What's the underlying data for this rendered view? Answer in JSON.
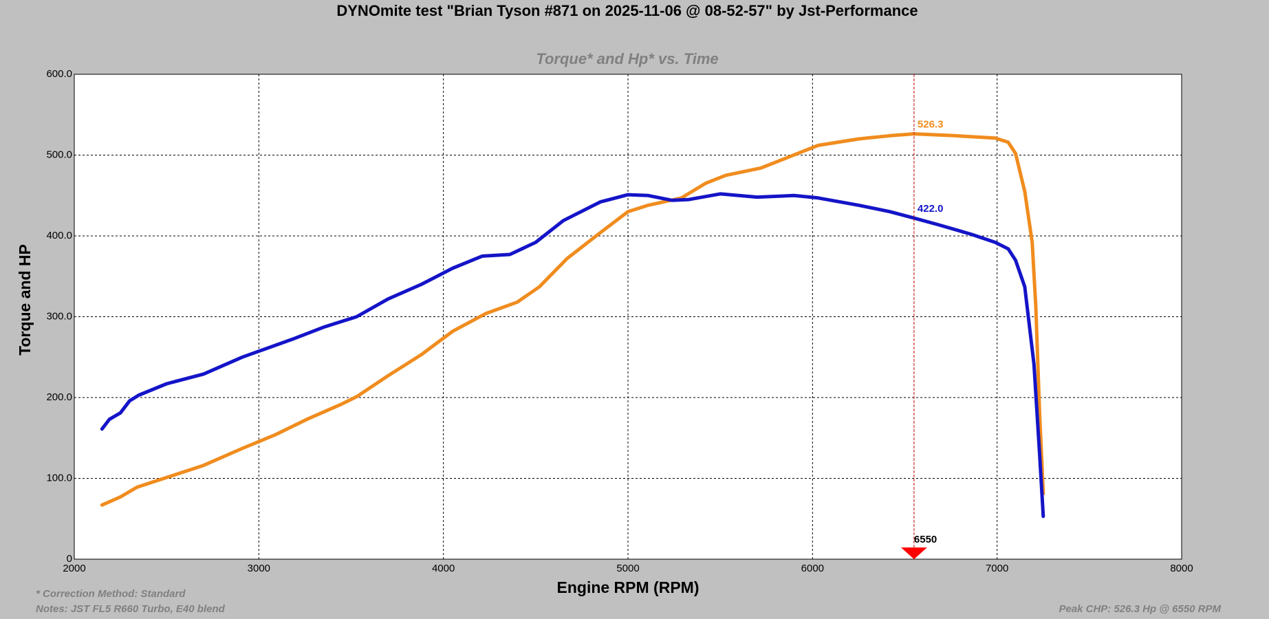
{
  "chart_data": {
    "type": "line",
    "title": "DYNOmite test \"Brian Tyson #871 on 2025-11-06 @ 08-52-57\" by Jst-Performance",
    "subtitle": "Torque* and Hp* vs. Time",
    "x_label": "Engine RPM (RPM)",
    "y_label": "Torque and HP",
    "annotations": [
      "* Correction Method: Standard",
      "Notes: JST FL5 R660 Turbo, E40 blend",
      "Peak CHP: 526.3 Hp @ 6550 RPM"
    ],
    "xlim": [
      2000,
      8000
    ],
    "xticks": [
      2000,
      3000,
      4000,
      5000,
      6000,
      7000,
      8000
    ],
    "ylim": [
      0,
      600
    ],
    "yticks": [
      0,
      {
        "value": 100,
        "label": "100.0"
      },
      {
        "value": 200,
        "label": "200.0"
      },
      {
        "value": 300,
        "label": "300.0"
      },
      {
        "value": 400,
        "label": "400.0"
      },
      {
        "value": 500,
        "label": "500.0"
      },
      {
        "value": 600,
        "label": "600.0"
      }
    ],
    "grid": true,
    "cursor": {
      "x": 6550,
      "values": [
        526.3,
        422.0
      ],
      "value_labels": [
        "526.3",
        "422.0"
      ]
    },
    "series": [
      {
        "color": "#f08c1e",
        "x": [
          2150,
          2250,
          2340,
          2500,
          2700,
          2910,
          3090,
          3260,
          3440,
          3530,
          3700,
          3880,
          4050,
          4230,
          4400,
          4520,
          4670,
          4850,
          5000,
          5110,
          5290,
          5420,
          5530,
          5720,
          5920,
          6030,
          6250,
          6420,
          6550,
          6770,
          6990,
          7060,
          7100,
          7150,
          7190,
          7210,
          7230,
          7250
        ],
        "values": [
          67,
          77,
          89,
          101,
          116,
          137,
          154,
          173,
          191,
          201,
          227,
          253,
          282,
          304,
          318,
          337,
          372,
          404,
          430,
          438,
          447,
          465,
          475,
          484,
          502,
          512,
          520,
          524,
          526.3,
          524,
          521,
          516,
          502,
          455,
          392,
          312,
          182,
          81
        ]
      },
      {
        "color": "#1414c8",
        "x": [
          2150,
          2190,
          2250,
          2300,
          2350,
          2500,
          2700,
          2910,
          3180,
          3350,
          3530,
          3700,
          3880,
          4050,
          4210,
          4360,
          4500,
          4650,
          4850,
          5000,
          5110,
          5240,
          5330,
          5500,
          5700,
          5900,
          6030,
          6250,
          6420,
          6550,
          6680,
          6860,
          6990,
          7060,
          7100,
          7150,
          7200,
          7230,
          7250
        ],
        "values": [
          161,
          173,
          181,
          196,
          203,
          217,
          229,
          250,
          272,
          287,
          300,
          322,
          340,
          360,
          375,
          377,
          392,
          419,
          442,
          451,
          450,
          444,
          445,
          452,
          448,
          450,
          447,
          438,
          430,
          422,
          414,
          402,
          392,
          384,
          370,
          337,
          241,
          131,
          53
        ]
      }
    ]
  }
}
